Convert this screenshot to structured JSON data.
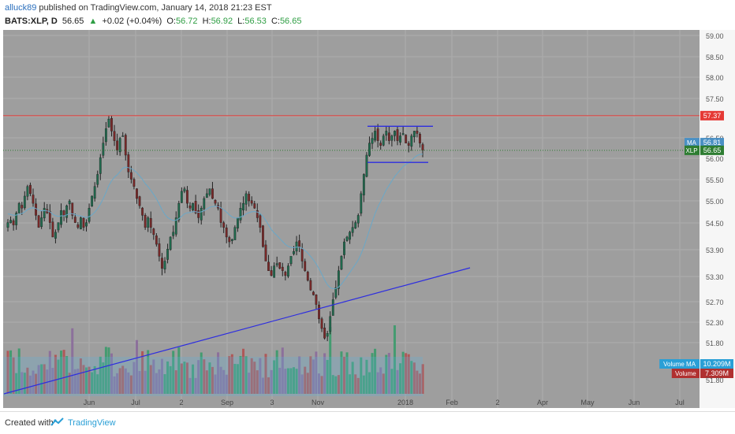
{
  "header": {
    "user": "alluck89",
    "published_text": "published on TradingView.com, January 14, 2018 21:23 EST",
    "symbol": "BATS:XLP, D",
    "last": "56.65",
    "change_arrow": "▲",
    "change": "+0.02 (+0.04%)",
    "o_label": "O:",
    "o": "56.72",
    "h_label": "H:",
    "h": "56.92",
    "l_label": "L:",
    "l": "56.53",
    "c_label": "C:",
    "c": "56.65"
  },
  "footer": {
    "created_with": "Created with",
    "brand": "TradingView"
  },
  "colors": {
    "background": "#9e9e9e",
    "grid": "#adadad",
    "up_candle": "#1f6b4e",
    "down_candle": "#7a2828",
    "ma_line": "#6aa8c8",
    "resistance": "#e53935",
    "trend": "#2d2de0",
    "channel": "#2d2de0",
    "price_dotted": "#2e7d32"
  },
  "chart_data": {
    "type": "candlestick",
    "symbol": "BATS:XLP",
    "interval": "D",
    "y_axis_ticks": [
      "59.00",
      "58.50",
      "58.00",
      "57.50",
      "57.00",
      "56.50",
      "56.00",
      "55.50",
      "55.00",
      "54.50",
      "53.90",
      "53.30",
      "52.70",
      "52.30",
      "51.80"
    ],
    "x_axis_ticks": [
      "Jun",
      "Jul",
      "2",
      "Sep",
      "3",
      "Nov",
      "2018",
      "Feb",
      "2",
      "Apr",
      "May",
      "Jun",
      "Jul"
    ],
    "ylim": [
      51.3,
      59.15
    ],
    "price_labels": [
      {
        "text": "57.37",
        "value": 57.37,
        "color": "#e53935"
      },
      {
        "text": "56.81",
        "value": 56.81,
        "color": "#4a90c4",
        "tag": "MA"
      },
      {
        "text": "56.65",
        "value": 56.65,
        "color": "#2e7d32",
        "tag": "XLP"
      }
    ],
    "volume_labels": [
      {
        "tag": "Volume MA",
        "text": "10.209M",
        "color": "#2a9fd6"
      },
      {
        "tag": "Volume",
        "text": "7.309M",
        "color": "#b03030"
      }
    ],
    "volume_axis_tick": "51.80",
    "close": [
      55.15,
      55.2,
      55.1,
      55.35,
      55.55,
      55.45,
      55.7,
      55.9,
      55.75,
      55.55,
      55.3,
      55.05,
      55.25,
      55.45,
      55.35,
      55.15,
      54.85,
      54.95,
      55.15,
      55.4,
      55.3,
      55.5,
      55.6,
      55.3,
      55.15,
      55.05,
      55.25,
      55.05,
      55.15,
      55.45,
      55.7,
      55.9,
      56.15,
      56.5,
      56.8,
      57.1,
      57.3,
      57.05,
      56.85,
      56.65,
      56.9,
      56.95,
      56.55,
      56.2,
      56.05,
      55.9,
      55.65,
      55.5,
      55.3,
      55.05,
      55.25,
      55.05,
      54.9,
      54.7,
      54.45,
      54.2,
      54.35,
      54.6,
      54.85,
      54.95,
      55.25,
      55.55,
      55.8,
      55.85,
      55.55,
      55.45,
      55.55,
      55.35,
      55.25,
      55.45,
      55.65,
      55.75,
      55.85,
      55.65,
      55.55,
      55.45,
      55.15,
      55.05,
      54.85,
      54.75,
      54.8,
      55.05,
      55.25,
      55.45,
      55.55,
      55.75,
      55.6,
      55.55,
      55.45,
      55.25,
      55.05,
      54.65,
      54.35,
      54.15,
      54.05,
      54.25,
      54.3,
      54.2,
      54.15,
      54.05,
      54.25,
      54.45,
      54.55,
      54.75,
      54.65,
      54.35,
      54.15,
      53.95,
      53.75,
      53.65,
      53.45,
      53.15,
      52.95,
      52.75,
      52.85,
      53.2,
      53.55,
      53.8,
      54.15,
      54.45,
      54.75,
      54.85,
      54.95,
      55.05,
      55.15,
      55.3,
      55.75,
      56.15,
      56.55,
      56.8,
      56.9,
      57.05,
      56.85,
      56.75,
      56.95,
      57.05,
      56.85,
      56.95,
      57.05,
      56.85,
      56.95,
      57.0,
      56.8,
      56.75,
      56.95,
      57.05,
      57.0,
      56.8,
      56.65
    ],
    "ma": {
      "name": "MA",
      "last": 56.81
    },
    "annotations": {
      "horizontal_line": 57.37,
      "trend_line": {
        "from": [
          "May 2017",
          51.7
        ],
        "to": [
          "Feb 2018",
          53.35
        ]
      },
      "channel": {
        "top": 57.15,
        "bottom": 56.4
      }
    }
  }
}
